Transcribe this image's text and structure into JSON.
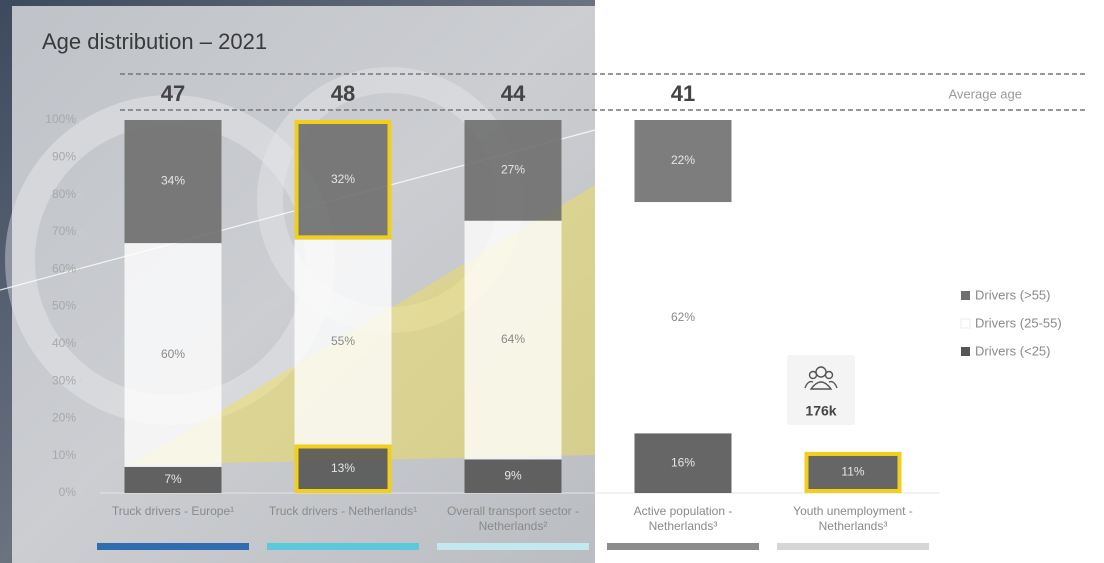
{
  "chart_data": {
    "type": "stacked_bar",
    "title": "Age distribution – 2021",
    "categories": [
      "Truck drivers - Europe¹",
      "Truck drivers - Netherlands¹",
      "Overall transport sector - Netherlands²",
      "Active population - Netherlands³",
      "Youth unemployment - Netherlands³"
    ],
    "category_colors": [
      "#2f6db0",
      "#5bc8dc",
      "#c4e8ef",
      "#8c8c8c",
      "#d6d6d6"
    ],
    "average_age": {
      "label": "Average age",
      "values": [
        47,
        48,
        44,
        41,
        null
      ]
    },
    "series": [
      {
        "name": "Drivers (<25)",
        "color": "#555555",
        "values": [
          7,
          13,
          9,
          16,
          11
        ],
        "value_labels": [
          "7%",
          "13%",
          "9%",
          "16%",
          "11%"
        ],
        "highlight": [
          false,
          true,
          false,
          false,
          true
        ]
      },
      {
        "name": "Drivers (25-55)",
        "color": "#ffffff",
        "values": [
          60,
          55,
          64,
          62,
          null
        ],
        "value_labels": [
          "60%",
          "55%",
          "64%",
          "62%",
          null
        ],
        "highlight": [
          false,
          false,
          false,
          false,
          false
        ]
      },
      {
        "name": "Drivers (>55)",
        "color": "#6f6f6f",
        "values": [
          34,
          32,
          27,
          22,
          null
        ],
        "value_labels": [
          "34%",
          "32%",
          "27%",
          "22%",
          null
        ],
        "highlight": [
          false,
          true,
          false,
          false,
          false
        ]
      }
    ],
    "highlight_color": "#f2cf1a",
    "annotation": "176k",
    "ylim": [
      0,
      100
    ],
    "yticks": [
      {
        "value": 0,
        "label": "0%"
      },
      {
        "value": 10,
        "label": "10%"
      },
      {
        "value": 20,
        "label": "20%"
      },
      {
        "value": 30,
        "label": "30%"
      },
      {
        "value": 40,
        "label": "40%"
      },
      {
        "value": 50,
        "label": "50%"
      },
      {
        "value": 60,
        "label": "60%"
      },
      {
        "value": 70,
        "label": "70%"
      },
      {
        "value": 80,
        "label": "80%"
      },
      {
        "value": 90,
        "label": "90%"
      },
      {
        "value": 100,
        "label": "100%"
      }
    ],
    "legend": "right"
  }
}
